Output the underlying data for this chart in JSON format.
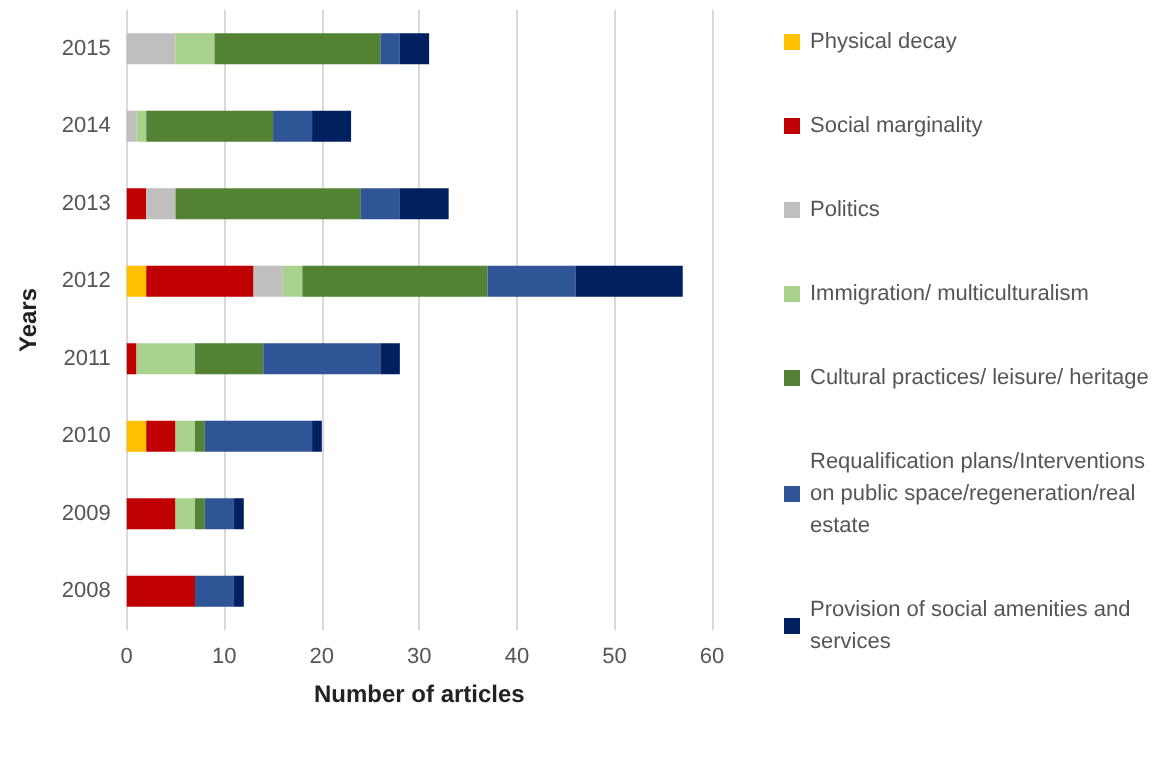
{
  "chart_data": {
    "type": "bar",
    "orientation": "horizontal",
    "stacked": true,
    "xlabel": "Number of articles",
    "ylabel": "Years",
    "categories": [
      "2015",
      "2014",
      "2013",
      "2012",
      "2011",
      "2010",
      "2009",
      "2008"
    ],
    "xlim": [
      0,
      60
    ],
    "xticks": [
      0,
      10,
      20,
      30,
      40,
      50,
      60
    ],
    "grid": "x",
    "legend": "right",
    "series": [
      {
        "name": "Physical decay",
        "color": "#ffc000",
        "values": [
          0,
          0,
          0,
          2,
          0,
          2,
          0,
          0
        ]
      },
      {
        "name": "Social marginality",
        "color": "#c00000",
        "values": [
          0,
          0,
          2,
          11,
          1,
          3,
          5,
          7
        ]
      },
      {
        "name": "Politics",
        "color": "#bfbfbf",
        "values": [
          5,
          1,
          3,
          3,
          0,
          0,
          0,
          0
        ]
      },
      {
        "name": "Immigration/ multiculturalism",
        "color": "#a9d18e",
        "values": [
          4,
          1,
          0,
          2,
          6,
          2,
          2,
          0
        ]
      },
      {
        "name": "Cultural practices/ leisure/ heritage",
        "color": "#548235",
        "values": [
          17,
          13,
          19,
          19,
          7,
          1,
          1,
          0
        ]
      },
      {
        "name": "Requalification plans/Interventions on public space/regeneration/real estate",
        "color": "#2f5597",
        "values": [
          2,
          4,
          4,
          9,
          12,
          11,
          3,
          4
        ]
      },
      {
        "name": "Provision of social amenities and services",
        "color": "#002060",
        "values": [
          3,
          4,
          5,
          11,
          2,
          1,
          1,
          1
        ]
      }
    ]
  }
}
